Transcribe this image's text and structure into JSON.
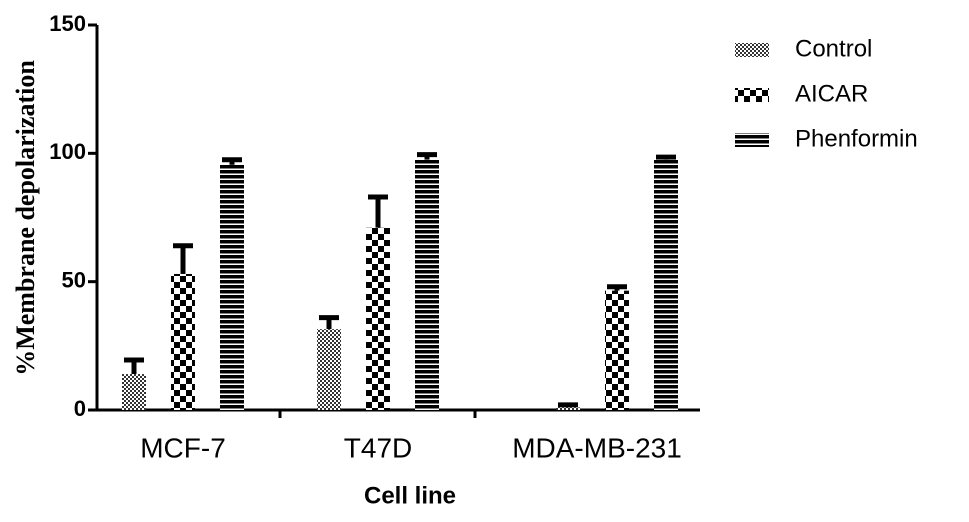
{
  "chart_data": {
    "type": "bar",
    "x_label": "Cell line",
    "y_label": "%Membrane depolarization",
    "categories": [
      "MCF-7",
      "T47D",
      "MDA-MB-231"
    ],
    "series": [
      {
        "name": "Control",
        "values": [
          14,
          31.5,
          1
        ],
        "errors": [
          5.5,
          4.5,
          1
        ]
      },
      {
        "name": "AICAR",
        "values": [
          53,
          71,
          46.5
        ],
        "errors": [
          11,
          12,
          1.5
        ]
      },
      {
        "name": "Phenformin",
        "values": [
          95.5,
          97.5,
          97.5
        ],
        "errors": [
          2,
          2,
          1
        ]
      }
    ],
    "ylim": [
      0,
      150
    ],
    "yticks": [
      0,
      50,
      100,
      150
    ]
  }
}
